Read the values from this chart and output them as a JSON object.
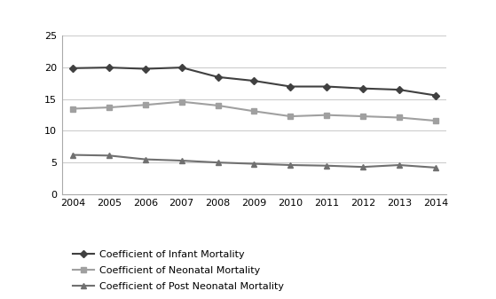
{
  "years": [
    2004,
    2005,
    2006,
    2007,
    2008,
    2009,
    2010,
    2011,
    2012,
    2013,
    2014
  ],
  "infant_mortality": [
    19.9,
    20.0,
    19.8,
    20.0,
    18.5,
    17.9,
    17.0,
    17.0,
    16.7,
    16.5,
    15.6
  ],
  "neonatal_mortality": [
    13.5,
    13.7,
    14.1,
    14.6,
    14.0,
    13.1,
    12.3,
    12.5,
    12.3,
    12.1,
    11.6
  ],
  "post_neonatal_mortality": [
    6.2,
    6.1,
    5.5,
    5.3,
    5.0,
    4.8,
    4.6,
    4.5,
    4.3,
    4.6,
    4.2
  ],
  "infant_color": "#404040",
  "neonatal_color": "#A0A0A0",
  "post_neonatal_color": "#707070",
  "ylim": [
    0,
    25
  ],
  "yticks": [
    0,
    5,
    10,
    15,
    20,
    25
  ],
  "legend_labels": [
    "Coefficient of Infant Mortality",
    "Coefficient of Neonatal Mortality",
    "Coefficient of Post Neonatal Mortality"
  ],
  "background_color": "#ffffff",
  "grid_color": "#cccccc"
}
